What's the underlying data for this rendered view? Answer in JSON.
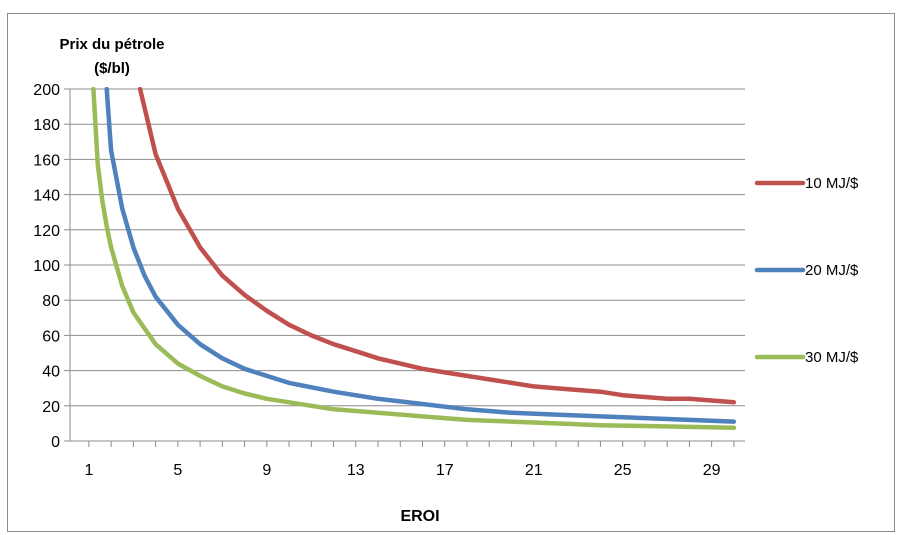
{
  "chart_data": {
    "type": "line",
    "title": "",
    "ylabel_line1": "Prix du pétrole",
    "ylabel_line2": "($/bl)",
    "xlabel": "EROI",
    "xlim": [
      1,
      30
    ],
    "ylim": [
      0,
      200
    ],
    "x_ticks": [
      1,
      5,
      9,
      13,
      17,
      21,
      25,
      29
    ],
    "x_tick_labels": [
      "1",
      "5",
      "9",
      "13",
      "17",
      "21",
      "25",
      "29"
    ],
    "y_ticks": [
      0,
      20,
      40,
      60,
      80,
      100,
      120,
      140,
      160,
      180,
      200
    ],
    "y_tick_labels": [
      "0",
      "20",
      "40",
      "60",
      "80",
      "100",
      "120",
      "140",
      "160",
      "180",
      "200"
    ],
    "grid": "horizontal",
    "legend_position": "right",
    "series": [
      {
        "name": "10 MJ/$",
        "color": "#c0504d",
        "x": [
          3.3,
          4,
          5,
          6,
          7,
          8,
          9,
          10,
          11,
          12,
          13,
          14,
          15,
          16,
          17,
          18,
          19,
          20,
          21,
          22,
          23,
          24,
          25,
          26,
          27,
          28,
          29,
          30
        ],
        "values": [
          200,
          163,
          132,
          110,
          94,
          83,
          74,
          66,
          60,
          55,
          51,
          47,
          44,
          41,
          39,
          37,
          35,
          33,
          31,
          30,
          29,
          28,
          26,
          25,
          24,
          24,
          23,
          22
        ]
      },
      {
        "name": "20 MJ/$",
        "color": "#4f81bd",
        "x": [
          1.8,
          2,
          2.5,
          3,
          3.5,
          4,
          5,
          6,
          7,
          8,
          9,
          10,
          12,
          14,
          16,
          18,
          20,
          22,
          24,
          26,
          28,
          30
        ],
        "values": [
          200,
          165,
          132,
          110,
          94,
          82,
          66,
          55,
          47,
          41,
          37,
          33,
          28,
          24,
          21,
          18,
          16,
          15,
          14,
          13,
          12,
          11
        ]
      },
      {
        "name": "30 MJ/$",
        "color": "#9bbb59",
        "x": [
          1.2,
          1.4,
          1.6,
          1.8,
          2,
          2.5,
          3,
          4,
          5,
          6,
          7,
          8,
          9,
          10,
          12,
          14,
          16,
          18,
          20,
          22,
          24,
          26,
          28,
          30
        ],
        "values": [
          200,
          157,
          137,
          122,
          110,
          88,
          73,
          55,
          44,
          37,
          31,
          27,
          24,
          22,
          18,
          16,
          14,
          12,
          11,
          10,
          9,
          8.5,
          8,
          7.5
        ]
      }
    ]
  }
}
